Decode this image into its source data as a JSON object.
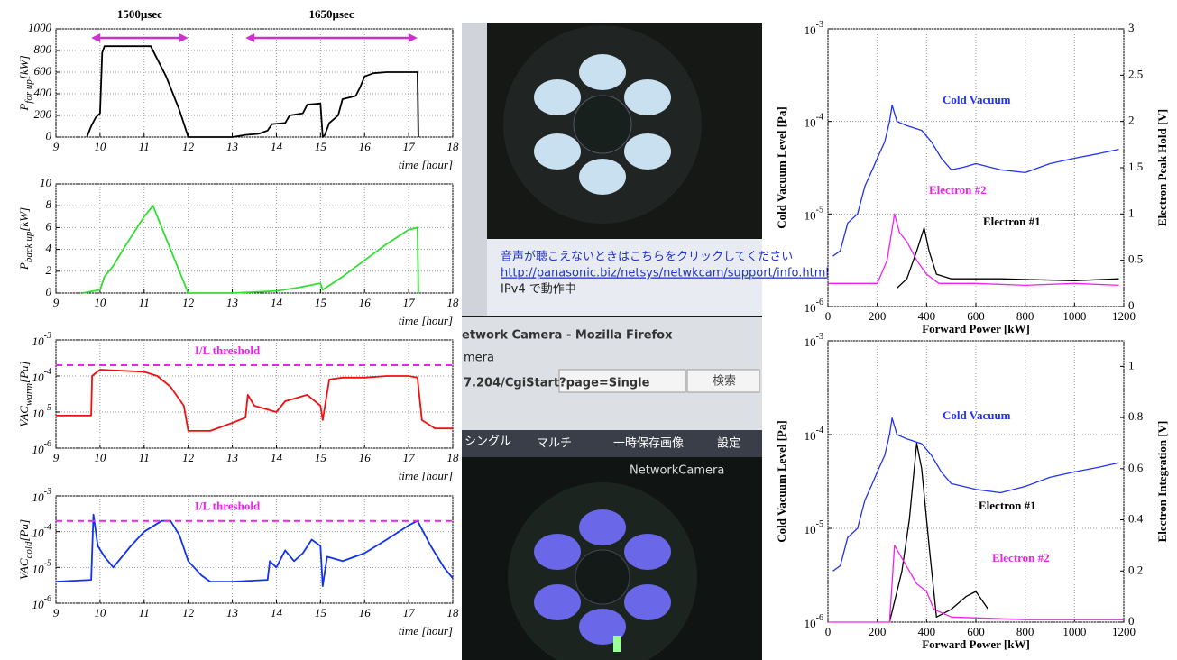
{
  "chart_data": [
    {
      "type": "line",
      "xlabel": "time [hour]",
      "ylabel": {
        "main": "P",
        "sub": "for up",
        "unit": "[kW]"
      },
      "xlim": [
        9,
        18
      ],
      "xticks": [
        9,
        10,
        11,
        12,
        13,
        14,
        15,
        16,
        17,
        18
      ],
      "ylim": [
        0,
        1000
      ],
      "yticks": [
        0,
        200,
        400,
        600,
        800,
        1000
      ],
      "grid": true,
      "annotations": [
        {
          "text": "1500µsec",
          "from": 9.8,
          "to": 12.0,
          "color": "#cc33cc"
        },
        {
          "text": "1650µsec",
          "from": 13.3,
          "to": 17.2,
          "color": "#cc33cc"
        }
      ],
      "series": [
        {
          "color": "#000000",
          "x": [
            9.7,
            9.8,
            9.9,
            10.0,
            10.05,
            10.1,
            10.5,
            11.0,
            11.15,
            11.5,
            11.8,
            12.0,
            13.0,
            13.3,
            13.6,
            13.8,
            13.9,
            14.2,
            14.3,
            14.6,
            14.7,
            15.0,
            15.05,
            15.1,
            15.2,
            15.4,
            15.5,
            15.8,
            15.9,
            16.0,
            16.2,
            16.5,
            17.0,
            17.2,
            17.22
          ],
          "values": [
            0,
            100,
            180,
            220,
            780,
            840,
            840,
            840,
            840,
            560,
            250,
            0,
            0,
            20,
            30,
            60,
            120,
            130,
            200,
            220,
            300,
            310,
            0,
            20,
            130,
            200,
            350,
            380,
            460,
            560,
            590,
            600,
            600,
            600,
            0
          ]
        }
      ]
    },
    {
      "type": "line",
      "xlabel": "time [hour]",
      "ylabel": {
        "main": "P",
        "sub": "back up",
        "unit": "[kW]"
      },
      "xlim": [
        9,
        18
      ],
      "xticks": [
        9,
        10,
        11,
        12,
        13,
        14,
        15,
        16,
        17,
        18
      ],
      "ylim": [
        0,
        10
      ],
      "yticks": [
        0,
        2,
        4,
        6,
        8,
        10
      ],
      "grid": true,
      "series": [
        {
          "color": "#33dd33",
          "x": [
            9.6,
            10.0,
            10.1,
            10.3,
            10.6,
            11.0,
            11.2,
            11.5,
            11.8,
            12.0,
            13.0,
            14.0,
            14.5,
            15.0,
            15.05,
            15.5,
            16.0,
            16.5,
            17.0,
            17.2,
            17.22
          ],
          "values": [
            0,
            0.3,
            1.5,
            2.5,
            4.5,
            7,
            8,
            5,
            2,
            0,
            0,
            0.2,
            0.5,
            0.9,
            0.3,
            1.5,
            3,
            4.5,
            5.8,
            6,
            0
          ]
        }
      ]
    },
    {
      "type": "line",
      "xlabel": "time [hour]",
      "ylabel": {
        "main": "VAC",
        "sub": "warm",
        "unit": "[Pa]"
      },
      "ylog": true,
      "xlim": [
        9,
        18
      ],
      "xticks": [
        9,
        10,
        11,
        12,
        13,
        14,
        15,
        16,
        17,
        18
      ],
      "ylim": [
        1e-06,
        0.001
      ],
      "yticks": [
        {
          "value": 1e-06,
          "label": "10-6"
        },
        {
          "value": 1e-05,
          "label": "10-5"
        },
        {
          "value": 0.0001,
          "label": "10-4"
        },
        {
          "value": 0.001,
          "label": "10-3"
        }
      ],
      "grid": true,
      "threshold": 0.0002,
      "threshold_label": "I/L threshold",
      "threshold_color": "#ee22ee",
      "series": [
        {
          "color": "#ee1111",
          "x": [
            9,
            9.8,
            9.82,
            10,
            10.5,
            11,
            11.3,
            11.6,
            11.9,
            12,
            12.5,
            13,
            13.3,
            13.35,
            13.5,
            14,
            14.2,
            14.7,
            15,
            15.05,
            15.2,
            15.5,
            16,
            16.5,
            17,
            17.2,
            17.3,
            17.6,
            18
          ],
          "values": [
            8e-06,
            8e-06,
            0.0001,
            0.00015,
            0.00014,
            0.00013,
            0.0001,
            5e-05,
            1.5e-05,
            3e-06,
            3e-06,
            5e-06,
            7e-06,
            3e-05,
            1.5e-05,
            1e-05,
            2e-05,
            3e-05,
            1.5e-05,
            6e-06,
            8e-05,
            9e-05,
            9e-05,
            0.0001,
            0.0001,
            9e-05,
            6e-06,
            3.5e-06,
            3.5e-06
          ]
        }
      ]
    },
    {
      "type": "line",
      "xlabel": "time [hour]",
      "ylabel": {
        "main": "VAC",
        "sub": "cold",
        "unit": "[Pa]"
      },
      "ylog": true,
      "xlim": [
        9,
        18
      ],
      "xticks": [
        9,
        10,
        11,
        12,
        13,
        14,
        15,
        16,
        17,
        18
      ],
      "ylim": [
        1e-06,
        0.001
      ],
      "yticks": [
        {
          "value": 1e-06,
          "label": "10-6"
        },
        {
          "value": 1e-05,
          "label": "10-5"
        },
        {
          "value": 0.0001,
          "label": "10-4"
        },
        {
          "value": 0.001,
          "label": "10-3"
        }
      ],
      "grid": true,
      "threshold": 0.0002,
      "threshold_label": "I/L threshold",
      "threshold_color": "#ee22ee",
      "series": [
        {
          "color": "#1133ee",
          "x": [
            9,
            9.8,
            9.85,
            9.95,
            10.1,
            10.3,
            10.7,
            11,
            11.4,
            11.6,
            11.8,
            12,
            12.3,
            12.5,
            13,
            13.8,
            13.85,
            14,
            14.2,
            14.4,
            14.6,
            14.8,
            15,
            15.05,
            15.15,
            15.5,
            16,
            16.5,
            17,
            17.2,
            17.5,
            17.8,
            18
          ],
          "values": [
            4e-06,
            4.5e-06,
            0.0003,
            4e-05,
            2e-05,
            1e-05,
            4e-05,
            0.0001,
            0.0002,
            0.0002,
            8e-05,
            1.5e-05,
            6e-06,
            4e-06,
            4e-06,
            4.5e-06,
            1.5e-05,
            1e-05,
            3e-05,
            1.5e-05,
            2.5e-05,
            6e-05,
            4e-05,
            3e-06,
            2e-05,
            1.5e-05,
            2.5e-05,
            6e-05,
            0.00015,
            0.0002,
            4e-05,
            1e-05,
            5e-06
          ]
        }
      ]
    },
    {
      "type": "line",
      "xlabel": "Forward Power [kW]",
      "ylabel": "Cold Vacuum Level [Pa]",
      "y2label": "Electron Peak Hold [V]",
      "ylog": true,
      "xlim": [
        0,
        1200
      ],
      "xticks": [
        0,
        200,
        400,
        600,
        800,
        1000,
        1200
      ],
      "ylim": [
        1e-06,
        0.001
      ],
      "yticks": [
        {
          "value": 1e-06,
          "label": "10-6"
        },
        {
          "value": 1e-05,
          "label": "10-5"
        },
        {
          "value": 0.0001,
          "label": "10-4"
        },
        {
          "value": 0.001,
          "label": "10-3"
        }
      ],
      "y2lim": [
        0,
        3
      ],
      "y2ticks": [
        0,
        0.5,
        1,
        1.5,
        2,
        2.5,
        3
      ],
      "grid": true,
      "series": [
        {
          "name": "Cold Vacuum",
          "color": "#2233ee",
          "x": [
            20,
            50,
            80,
            120,
            150,
            180,
            200,
            230,
            250,
            260,
            280,
            320,
            380,
            420,
            460,
            500,
            550,
            600,
            700,
            800,
            900,
            1000,
            1100,
            1180
          ],
          "values": [
            3.5e-06,
            4e-06,
            8e-06,
            1e-05,
            2e-05,
            3e-05,
            4e-05,
            6e-05,
            0.0001,
            0.00015,
            0.0001,
            9e-05,
            8e-05,
            6e-05,
            4e-05,
            3e-05,
            3.2e-05,
            3.5e-05,
            3e-05,
            2.8e-05,
            3.5e-05,
            4e-05,
            4.5e-05,
            5e-05
          ]
        },
        {
          "name": "Electron #2",
          "color": "#ee22ee",
          "axis": "y2",
          "x": [
            0,
            200,
            240,
            270,
            290,
            320,
            360,
            400,
            450,
            600,
            800,
            1000,
            1180
          ],
          "values": [
            0.25,
            0.25,
            0.5,
            1.0,
            0.8,
            0.7,
            0.5,
            0.35,
            0.25,
            0.25,
            0.23,
            0.25,
            0.23
          ]
        },
        {
          "name": "Electron #1",
          "color": "#000000",
          "axis": "y2",
          "x": [
            280,
            320,
            360,
            390,
            410,
            440,
            500,
            700,
            1000,
            1180
          ],
          "values": [
            0.2,
            0.3,
            0.6,
            0.85,
            0.6,
            0.35,
            0.3,
            0.3,
            0.28,
            0.3
          ]
        }
      ]
    },
    {
      "type": "line",
      "xlabel": "Forward Power [kW]",
      "ylabel": "Cold Vacuum Level [Pa]",
      "y2label": "Electron Integration [V]",
      "ylog": true,
      "xlim": [
        0,
        1200
      ],
      "xticks": [
        0,
        200,
        400,
        600,
        800,
        1000,
        1200
      ],
      "ylim": [
        1e-06,
        0.001
      ],
      "yticks": [
        {
          "value": 1e-06,
          "label": "10-6"
        },
        {
          "value": 1e-05,
          "label": "10-5"
        },
        {
          "value": 0.0001,
          "label": "10-4"
        },
        {
          "value": 0.001,
          "label": "10-3"
        }
      ],
      "y2lim": [
        0,
        1.1
      ],
      "y2ticks": [
        0,
        0.2,
        0.4,
        0.6,
        0.8,
        1
      ],
      "grid": true,
      "series": [
        {
          "name": "Cold Vacuum",
          "color": "#2233ee",
          "x": [
            20,
            50,
            80,
            120,
            150,
            180,
            200,
            230,
            250,
            260,
            280,
            320,
            380,
            420,
            460,
            500,
            550,
            600,
            700,
            800,
            900,
            1000,
            1100,
            1180
          ],
          "values": [
            3.5e-06,
            4e-06,
            8e-06,
            1e-05,
            2e-05,
            3e-05,
            4e-05,
            6e-05,
            0.0001,
            0.00015,
            0.0001,
            9e-05,
            8e-05,
            6e-05,
            4e-05,
            3e-05,
            2.8e-05,
            2.6e-05,
            2.4e-05,
            2.8e-05,
            3.5e-05,
            4e-05,
            4.5e-05,
            5e-05
          ]
        },
        {
          "name": "Electron #1",
          "color": "#000000",
          "axis": "y2",
          "x": [
            250,
            300,
            330,
            360,
            380,
            410,
            440,
            500,
            560,
            600,
            650
          ],
          "values": [
            0,
            0.2,
            0.4,
            0.7,
            0.6,
            0.3,
            0.02,
            0.05,
            0.1,
            0.12,
            0.05
          ]
        },
        {
          "name": "Electron #2",
          "color": "#ee22ee",
          "axis": "y2",
          "x": [
            0,
            250,
            270,
            300,
            330,
            360,
            400,
            430,
            500,
            800,
            1200
          ],
          "values": [
            0,
            0,
            0.3,
            0.25,
            0.2,
            0.15,
            0.12,
            0.05,
            0.02,
            0.01,
            0.01
          ]
        }
      ]
    }
  ],
  "photo": {
    "notice": "音声が聴こえないときはこちらをクリックしてください",
    "link": "http://panasonic.biz/netsys/netwkcam/support/info.html",
    "status": "IPv4 で動作中",
    "window_title": "etwork Camera - Mozilla Firefox",
    "tab": "mera",
    "url": "7.204/CgiStart?page=Single",
    "search": "検索",
    "tabs": [
      "シングル",
      "マルチ",
      "一時保存画像",
      "設定"
    ],
    "camera_title": "NetworkCamera"
  }
}
